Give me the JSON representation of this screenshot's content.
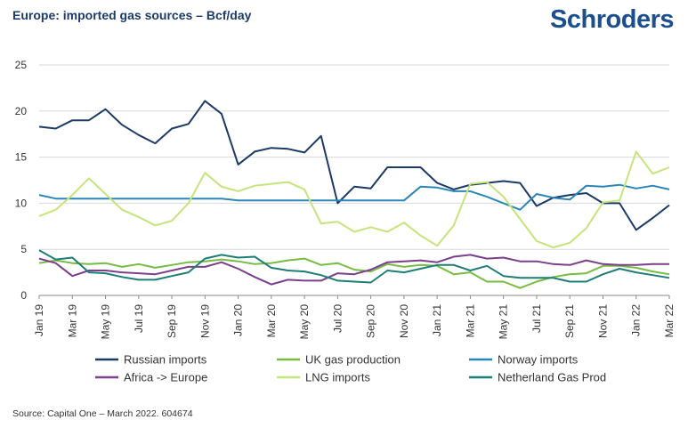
{
  "header": {
    "title": "Europe: imported gas sources – Bcf/day",
    "brand": "Schroders"
  },
  "footer": {
    "source": "Source: Capital One – March 2022. 604674"
  },
  "colors": {
    "Russian imports": "#1b3a66",
    "UK gas production": "#76bc43",
    "Norway imports": "#2b86b8",
    "Africa -> Europe": "#7b3f8c",
    "LNG imports": "#c5e47c",
    "Netherland Gas Prod": "#1f7d78"
  },
  "chart_data": {
    "type": "line",
    "title": "Europe: imported gas sources – Bcf/day",
    "xlabel": "",
    "ylabel": "",
    "ylim": [
      0,
      25
    ],
    "yticks": [
      0,
      5,
      10,
      15,
      20,
      25
    ],
    "grid": "horizontal",
    "legend_position": "bottom",
    "categories": [
      "Jan 19",
      "Feb 19",
      "Mar 19",
      "Apr 19",
      "May 19",
      "Jun 19",
      "Jul 19",
      "Aug 19",
      "Sep 19",
      "Oct 19",
      "Nov 19",
      "Dec 19",
      "Jan 20",
      "Feb 20",
      "Mar 20",
      "Apr 20",
      "May 20",
      "Jun 20",
      "Jul 20",
      "Aug 20",
      "Sep 20",
      "Oct 20",
      "Nov 20",
      "Dec 20",
      "Jan 21",
      "Feb 21",
      "Mar 21",
      "Apr 21",
      "May 21",
      "Jun 21",
      "Jul 21",
      "Aug 21",
      "Sep 21",
      "Oct 21",
      "Nov 21",
      "Dec 21",
      "Jan 22",
      "Feb 22",
      "Mar 22"
    ],
    "tick_labels": [
      "Jan 19",
      "Mar 19",
      "May 19",
      "Jul 19",
      "Sep 19",
      "Nov 19",
      "Jan 20",
      "Mar 20",
      "May 20",
      "Jul 20",
      "Sep 20",
      "Nov 20",
      "Jan 21",
      "Mar 21",
      "May 21",
      "Jul 21",
      "Sep 21",
      "Nov 21",
      "Jan 22",
      "Mar 22"
    ],
    "series": [
      {
        "name": "Russian imports",
        "values": [
          18.3,
          18.1,
          19.0,
          19.0,
          20.2,
          18.5,
          17.4,
          16.5,
          18.1,
          18.6,
          21.1,
          19.7,
          14.2,
          15.6,
          16.0,
          15.9,
          15.5,
          17.3,
          10.0,
          11.8,
          11.6,
          13.9,
          13.9,
          13.9,
          12.2,
          11.5,
          12.0,
          12.2,
          12.4,
          12.2,
          9.7,
          10.6,
          10.9,
          11.1,
          10.0,
          10.0,
          7.1,
          8.4,
          9.8
        ]
      },
      {
        "name": "UK gas production",
        "values": [
          3.5,
          3.8,
          3.5,
          3.4,
          3.5,
          3.1,
          3.4,
          3.0,
          3.3,
          3.6,
          3.7,
          3.9,
          3.7,
          3.4,
          3.5,
          3.8,
          4.0,
          3.3,
          3.5,
          2.8,
          2.6,
          3.4,
          3.1,
          3.3,
          3.2,
          2.3,
          2.5,
          1.5,
          1.5,
          0.8,
          1.5,
          2.0,
          2.3,
          2.4,
          3.2,
          3.2,
          3.0,
          2.6,
          2.3
        ]
      },
      {
        "name": "Norway imports",
        "values": [
          10.9,
          10.5,
          10.5,
          10.5,
          10.5,
          10.5,
          10.5,
          10.5,
          10.5,
          10.5,
          10.5,
          10.5,
          10.3,
          10.3,
          10.3,
          10.3,
          10.3,
          10.3,
          10.3,
          10.3,
          10.3,
          10.3,
          10.3,
          11.8,
          11.7,
          11.3,
          11.3,
          10.7,
          10.0,
          9.3,
          11.0,
          10.6,
          10.4,
          11.9,
          11.8,
          12.0,
          11.6,
          11.9,
          11.5
        ]
      },
      {
        "name": "Africa -> Europe",
        "values": [
          4.0,
          3.5,
          2.1,
          2.7,
          2.7,
          2.5,
          2.4,
          2.3,
          2.7,
          3.1,
          3.1,
          3.6,
          2.9,
          2.0,
          1.2,
          1.7,
          1.6,
          1.6,
          2.4,
          2.3,
          2.8,
          3.6,
          3.7,
          3.8,
          3.6,
          4.2,
          4.4,
          4.0,
          4.1,
          3.7,
          3.7,
          3.4,
          3.3,
          3.8,
          3.4,
          3.3,
          3.3,
          3.4,
          3.4
        ]
      },
      {
        "name": "LNG imports",
        "values": [
          8.6,
          9.3,
          10.9,
          12.7,
          11.0,
          9.3,
          8.5,
          7.6,
          8.1,
          10.0,
          13.3,
          11.8,
          11.3,
          11.9,
          12.1,
          12.3,
          11.5,
          7.8,
          8.0,
          6.9,
          7.4,
          6.9,
          7.9,
          6.5,
          5.4,
          7.6,
          12.1,
          12.3,
          10.7,
          8.3,
          5.9,
          5.2,
          5.7,
          7.3,
          10.1,
          10.3,
          15.6,
          13.2,
          13.9
        ]
      },
      {
        "name": "Netherland Gas Prod",
        "values": [
          4.9,
          3.9,
          4.1,
          2.5,
          2.4,
          2.0,
          1.7,
          1.7,
          2.1,
          2.5,
          4.0,
          4.4,
          4.1,
          4.2,
          3.0,
          2.7,
          2.6,
          2.2,
          1.6,
          1.5,
          1.4,
          2.7,
          2.5,
          2.9,
          3.3,
          3.3,
          2.7,
          3.2,
          2.1,
          1.9,
          1.9,
          1.9,
          1.5,
          1.5,
          2.3,
          2.9,
          2.5,
          2.2,
          1.9
        ]
      }
    ]
  }
}
